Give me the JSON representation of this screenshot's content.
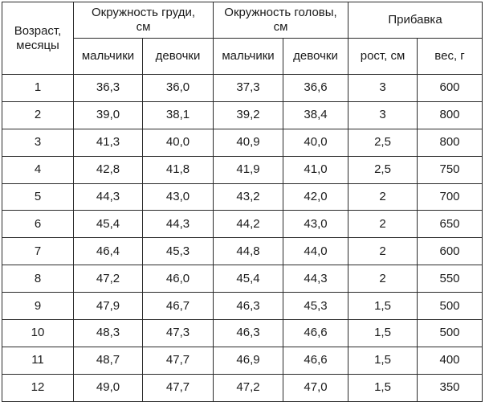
{
  "header": {
    "age": "Возраст,\nмесяцы",
    "chest": "Окружность груди,\nсм",
    "headc": "Окружность головы,\nсм",
    "gain": "Прибавка",
    "boys": "мальчики",
    "girls": "девочки",
    "height_gain": "рост, см",
    "weight_gain": "вес, г"
  },
  "rows": [
    [
      "1",
      "36,3",
      "36,0",
      "37,3",
      "36,6",
      "3",
      "600"
    ],
    [
      "2",
      "39,0",
      "38,1",
      "39,2",
      "38,4",
      "3",
      "800"
    ],
    [
      "3",
      "41,3",
      "40,0",
      "40,9",
      "40,0",
      "2,5",
      "800"
    ],
    [
      "4",
      "42,8",
      "41,8",
      "41,9",
      "41,0",
      "2,5",
      "750"
    ],
    [
      "5",
      "44,3",
      "43,0",
      "43,2",
      "42,0",
      "2",
      "700"
    ],
    [
      "6",
      "45,4",
      "44,3",
      "44,2",
      "43,0",
      "2",
      "650"
    ],
    [
      "7",
      "46,4",
      "45,3",
      "44,8",
      "44,0",
      "2",
      "600"
    ],
    [
      "8",
      "47,2",
      "46,0",
      "45,4",
      "44,3",
      "2",
      "550"
    ],
    [
      "9",
      "47,9",
      "46,7",
      "46,3",
      "45,3",
      "1,5",
      "500"
    ],
    [
      "10",
      "48,3",
      "47,3",
      "46,3",
      "46,6",
      "1,5",
      "500"
    ],
    [
      "11",
      "48,7",
      "47,7",
      "46,9",
      "46,6",
      "1,5",
      "400"
    ],
    [
      "12",
      "49,0",
      "47,7",
      "47,2",
      "47,0",
      "1,5",
      "350"
    ]
  ]
}
